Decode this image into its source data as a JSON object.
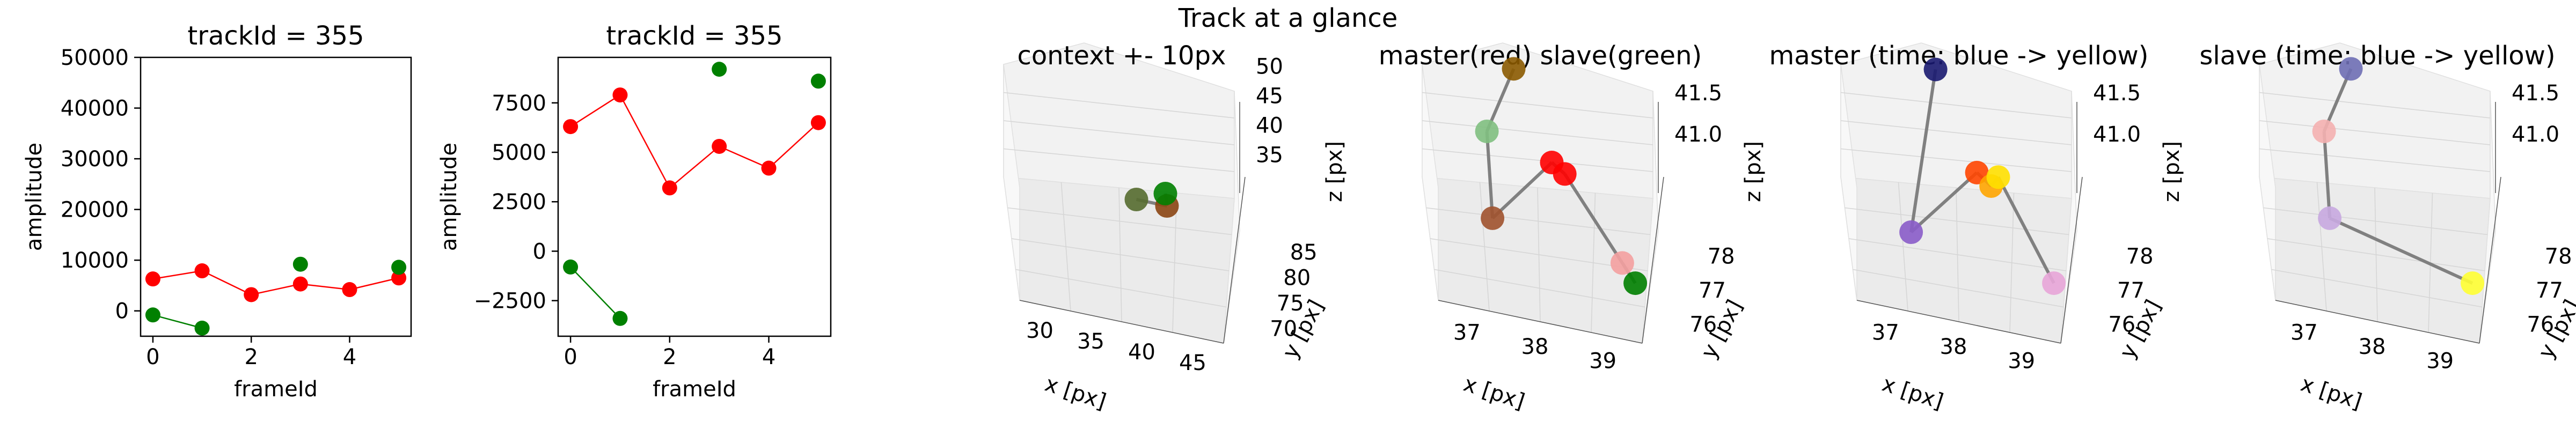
{
  "figure_title": "Track at a glance",
  "chart_data": [
    {
      "type": "line",
      "title": "trackId = 355",
      "xlabel": "frameId",
      "ylabel": "amplitude",
      "xlim": [
        -0.25,
        5.25
      ],
      "ylim": [
        -5000,
        50000
      ],
      "xticks": [
        0,
        2,
        4
      ],
      "yticks": [
        0,
        10000,
        20000,
        30000,
        40000,
        50000
      ],
      "series": [
        {
          "color": "#ff0000",
          "x": [
            0,
            1,
            2,
            3,
            4,
            5
          ],
          "values": [
            6300,
            7900,
            3200,
            5300,
            4200,
            6500
          ]
        },
        {
          "color": "#008000",
          "x": [
            0,
            1,
            3,
            5
          ],
          "values": [
            -800,
            -3400,
            9200,
            8600
          ],
          "segments": [
            [
              0,
              1
            ]
          ]
        }
      ]
    },
    {
      "type": "line",
      "title": "trackId = 355",
      "xlabel": "frameId",
      "ylabel": "amplitude",
      "xlim": [
        -0.25,
        5.25
      ],
      "ylim": [
        -4300,
        9800
      ],
      "xticks": [
        0,
        2,
        4
      ],
      "yticks": [
        -2500,
        0,
        2500,
        5000,
        7500
      ],
      "series": [
        {
          "color": "#ff0000",
          "x": [
            0,
            1,
            2,
            3,
            4,
            5
          ],
          "values": [
            6300,
            7900,
            3200,
            5300,
            4200,
            6500
          ]
        },
        {
          "color": "#008000",
          "x": [
            0,
            1,
            3,
            5
          ],
          "values": [
            -800,
            -3400,
            9200,
            8600
          ],
          "segments": [
            [
              0,
              1
            ]
          ]
        }
      ]
    },
    {
      "type": "scatter",
      "title": "context +- 10px",
      "xlabel": "x [px]",
      "ylabel": "y [px]",
      "zlabel": "z [px]",
      "xticks": [
        "30",
        "35",
        "40",
        "45"
      ],
      "yticks": [
        "70",
        "75",
        "80",
        "85"
      ],
      "zticks": [
        "35",
        "40",
        "45",
        "50"
      ],
      "points": [
        {
          "x": 39,
          "y": 77,
          "z": 41,
          "color": "#556b2f"
        },
        {
          "x": 40,
          "y": 77,
          "z": 41,
          "color": "#8b4513"
        },
        {
          "x": 40,
          "y": 78,
          "z": 41,
          "color": "#008000"
        }
      ]
    },
    {
      "type": "scatter",
      "title": "master(red) slave(green)",
      "xlabel": "x [px]",
      "ylabel": "y [px]",
      "zlabel": "z [px]",
      "xticks": [
        "37",
        "38",
        "39"
      ],
      "yticks": [
        "76",
        "77",
        "78"
      ],
      "zticks": [
        "41.0",
        "41.5"
      ],
      "points": [
        {
          "x": 37.5,
          "y": 78,
          "z": 42.0,
          "color": "#8b5a00"
        },
        {
          "x": 37.0,
          "y": 77,
          "z": 41.7,
          "color": "#7fbf7f"
        },
        {
          "x": 37.0,
          "y": 76,
          "z": 41.2,
          "color": "#a0522d"
        },
        {
          "x": 38.0,
          "y": 77,
          "z": 41.5,
          "color": "#ff0000"
        },
        {
          "x": 38.2,
          "y": 77,
          "z": 41.4,
          "color": "#ff0000"
        },
        {
          "x": 39.0,
          "y": 76,
          "z": 41.0,
          "color": "#f4a0a0"
        },
        {
          "x": 39.2,
          "y": 76,
          "z": 40.8,
          "color": "#008000"
        }
      ]
    },
    {
      "type": "scatter",
      "title": "master (time: blue -> yellow)",
      "xlabel": "x [px]",
      "ylabel": "y [px]",
      "zlabel": "z [px]",
      "xticks": [
        "37",
        "38",
        "39"
      ],
      "yticks": [
        "76",
        "77",
        "78"
      ],
      "zticks": [
        "41.0",
        "41.5"
      ],
      "points": [
        {
          "x": 37.5,
          "y": 78,
          "z": 42.0,
          "color": "#191970"
        },
        {
          "x": 37.0,
          "y": 76,
          "z": 41.2,
          "color": "#8a5cc9"
        },
        {
          "x": 38.0,
          "y": 77,
          "z": 41.5,
          "color": "#ff4500"
        },
        {
          "x": 38.2,
          "y": 77,
          "z": 41.4,
          "color": "#ffa500"
        },
        {
          "x": 38.3,
          "y": 77,
          "z": 41.5,
          "color": "#ffe000"
        },
        {
          "x": 39.0,
          "y": 76,
          "z": 41.0,
          "color": "#e8a5d8"
        }
      ]
    },
    {
      "type": "scatter",
      "title": "slave (time: blue -> yellow)",
      "xlabel": "x [px]",
      "ylabel": "y [px]",
      "zlabel": "z [px]",
      "xticks": [
        "37",
        "38",
        "39"
      ],
      "yticks": [
        "76",
        "77",
        "78"
      ],
      "zticks": [
        "41.0",
        "41.5"
      ],
      "points": [
        {
          "x": 37.5,
          "y": 78,
          "z": 42.0,
          "color": "#6e6eb4"
        },
        {
          "x": 37.0,
          "y": 77,
          "z": 41.7,
          "color": "#f4b0b0"
        },
        {
          "x": 37.0,
          "y": 76,
          "z": 41.2,
          "color": "#c8a8e0"
        },
        {
          "x": 39.2,
          "y": 76,
          "z": 40.8,
          "color": "#ffff33"
        }
      ]
    }
  ]
}
